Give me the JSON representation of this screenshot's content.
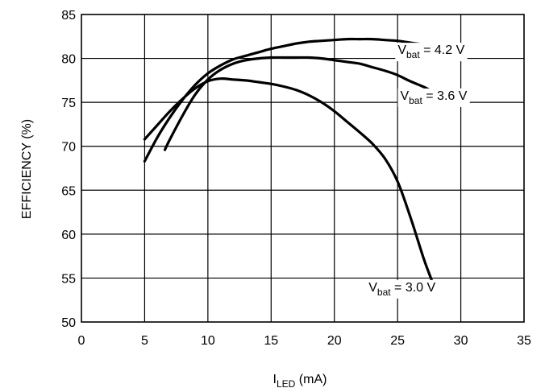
{
  "chart_data": {
    "type": "line",
    "title": "",
    "xlabel": {
      "main": "I",
      "sub": "LED",
      "unit": " (mA)"
    },
    "ylabel": "EFFICIENCY (%)",
    "xlim": [
      0,
      35
    ],
    "ylim": [
      50,
      85
    ],
    "xticks": [
      0,
      5,
      10,
      15,
      20,
      25,
      30,
      35
    ],
    "yticks": [
      50,
      55,
      60,
      65,
      70,
      75,
      80,
      85
    ],
    "grid": true,
    "legend": "none",
    "series": [
      {
        "label": {
          "main": "V",
          "sub": "bat",
          "rest": " = 4.2 V"
        },
        "label_anchor": {
          "x": 30.3,
          "y": 80.5
        },
        "x": [
          5,
          6,
          7,
          8,
          9,
          10,
          11,
          12,
          13,
          14,
          15,
          16,
          17,
          18,
          19,
          20,
          21,
          22,
          23,
          24,
          25,
          26,
          27,
          28,
          29,
          30
        ],
        "y": [
          68.3,
          71.0,
          73.3,
          75.3,
          77.0,
          78.3,
          79.2,
          79.9,
          80.3,
          80.7,
          81.1,
          81.4,
          81.7,
          81.9,
          82.0,
          82.1,
          82.2,
          82.2,
          82.2,
          82.1,
          82.0,
          81.8,
          81.6,
          81.4,
          81.1,
          80.8
        ]
      },
      {
        "label": {
          "main": "V",
          "sub": "bat",
          "rest": " = 3.6 V"
        },
        "label_anchor": {
          "x": 30.5,
          "y": 75.3
        },
        "x": [
          6.6,
          7,
          8,
          9,
          10,
          11,
          12,
          13,
          14,
          15,
          16,
          17,
          18,
          19,
          20,
          21,
          22,
          23,
          24,
          25,
          26,
          27,
          28,
          29,
          30,
          30.5
        ],
        "y": [
          69.6,
          70.8,
          73.5,
          75.9,
          77.6,
          78.7,
          79.4,
          79.8,
          80.0,
          80.1,
          80.1,
          80.1,
          80.1,
          80.0,
          79.8,
          79.6,
          79.4,
          79.0,
          78.6,
          78.1,
          77.4,
          76.8,
          76.1,
          75.5,
          75.0,
          74.8
        ]
      },
      {
        "label": {
          "main": "V",
          "sub": "bat",
          "rest": " = 3.0 V"
        },
        "label_anchor": {
          "x": 28.0,
          "y": 53.5
        },
        "x": [
          5,
          6,
          7,
          8,
          9,
          10,
          11,
          12,
          13,
          14,
          15,
          16,
          17,
          18,
          19,
          20,
          21,
          22,
          23,
          24,
          25,
          26,
          27,
          27.5,
          28
        ],
        "y": [
          70.8,
          72.4,
          74.0,
          75.4,
          76.6,
          77.4,
          77.7,
          77.6,
          77.5,
          77.3,
          77.1,
          76.8,
          76.4,
          75.8,
          75.0,
          74.0,
          72.8,
          71.6,
          70.3,
          68.6,
          66.0,
          62.0,
          57.5,
          55.5,
          53.6
        ]
      }
    ]
  }
}
